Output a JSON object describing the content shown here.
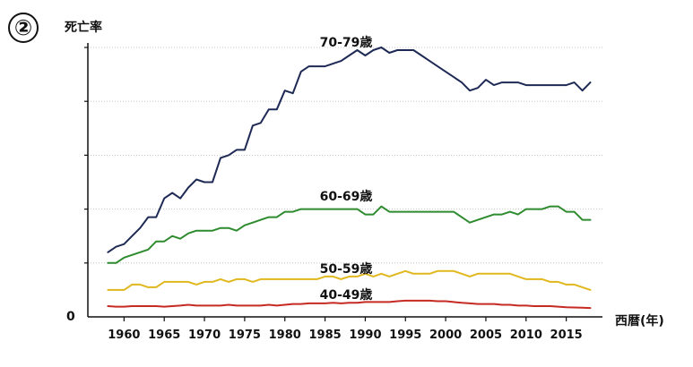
{
  "badge": "②",
  "chart_data": {
    "type": "line",
    "ylabel": "死亡率",
    "xlabel": "西暦(年)",
    "y_tick_labels": [
      "0"
    ],
    "x_ticks": [
      1960,
      1965,
      1970,
      1975,
      1980,
      1985,
      1990,
      1995,
      2000,
      2005,
      2010,
      2015
    ],
    "xlim": [
      1955.5,
      2019.5
    ],
    "ylim": [
      0,
      1.0
    ],
    "grid": "horizontal dotted",
    "series": [
      {
        "name": "70-79歳",
        "color": "#1e2a55",
        "x": [
          1958,
          1959,
          1960,
          1961,
          1962,
          1963,
          1964,
          1965,
          1966,
          1967,
          1968,
          1969,
          1970,
          1971,
          1972,
          1973,
          1974,
          1975,
          1976,
          1977,
          1978,
          1979,
          1980,
          1981,
          1982,
          1983,
          1984,
          1985,
          1986,
          1987,
          1988,
          1989,
          1990,
          1991,
          1992,
          1993,
          1994,
          1995,
          1996,
          1997,
          1998,
          1999,
          2000,
          2001,
          2002,
          2003,
          2004,
          2005,
          2006,
          2007,
          2008,
          2009,
          2010,
          2011,
          2012,
          2013,
          2014,
          2015,
          2016,
          2017,
          2018
        ],
        "values": [
          0.24,
          0.26,
          0.27,
          0.3,
          0.33,
          0.37,
          0.37,
          0.44,
          0.46,
          0.44,
          0.48,
          0.51,
          0.5,
          0.5,
          0.59,
          0.6,
          0.62,
          0.62,
          0.71,
          0.72,
          0.77,
          0.77,
          0.84,
          0.83,
          0.91,
          0.93,
          0.93,
          0.93,
          0.94,
          0.95,
          0.97,
          0.99,
          0.97,
          0.99,
          1.0,
          0.98,
          0.99,
          0.99,
          0.99,
          0.97,
          0.95,
          0.93,
          0.91,
          0.89,
          0.87,
          0.84,
          0.85,
          0.88,
          0.86,
          0.87,
          0.87,
          0.87,
          0.86,
          0.86,
          0.86,
          0.86,
          0.86,
          0.86,
          0.87,
          0.84,
          0.87
        ]
      },
      {
        "name": "60-69歳",
        "color": "#2e8b2e",
        "x": [
          1958,
          1959,
          1960,
          1961,
          1962,
          1963,
          1964,
          1965,
          1966,
          1967,
          1968,
          1969,
          1970,
          1971,
          1972,
          1973,
          1974,
          1975,
          1976,
          1977,
          1978,
          1979,
          1980,
          1981,
          1982,
          1983,
          1984,
          1985,
          1986,
          1987,
          1988,
          1989,
          1990,
          1991,
          1992,
          1993,
          1994,
          1995,
          1996,
          1997,
          1998,
          1999,
          2000,
          2001,
          2002,
          2003,
          2004,
          2005,
          2006,
          2007,
          2008,
          2009,
          2010,
          2011,
          2012,
          2013,
          2014,
          2015,
          2016,
          2017,
          2018
        ],
        "values": [
          0.2,
          0.2,
          0.22,
          0.23,
          0.24,
          0.25,
          0.28,
          0.28,
          0.3,
          0.29,
          0.31,
          0.32,
          0.32,
          0.32,
          0.33,
          0.33,
          0.32,
          0.34,
          0.35,
          0.36,
          0.37,
          0.37,
          0.39,
          0.39,
          0.4,
          0.4,
          0.4,
          0.4,
          0.4,
          0.4,
          0.4,
          0.4,
          0.38,
          0.38,
          0.41,
          0.39,
          0.39,
          0.39,
          0.39,
          0.39,
          0.39,
          0.39,
          0.39,
          0.39,
          0.37,
          0.35,
          0.36,
          0.37,
          0.38,
          0.38,
          0.39,
          0.38,
          0.4,
          0.4,
          0.4,
          0.41,
          0.41,
          0.39,
          0.39,
          0.36,
          0.36
        ]
      },
      {
        "name": "50-59歳",
        "color": "#e0b81e",
        "x": [
          1958,
          1959,
          1960,
          1961,
          1962,
          1963,
          1964,
          1965,
          1966,
          1967,
          1968,
          1969,
          1970,
          1971,
          1972,
          1973,
          1974,
          1975,
          1976,
          1977,
          1978,
          1979,
          1980,
          1981,
          1982,
          1983,
          1984,
          1985,
          1986,
          1987,
          1988,
          1989,
          1990,
          1991,
          1992,
          1993,
          1994,
          1995,
          1996,
          1997,
          1998,
          1999,
          2000,
          2001,
          2002,
          2003,
          2004,
          2005,
          2006,
          2007,
          2008,
          2009,
          2010,
          2011,
          2012,
          2013,
          2014,
          2015,
          2016,
          2017,
          2018
        ],
        "values": [
          0.1,
          0.1,
          0.1,
          0.12,
          0.12,
          0.11,
          0.11,
          0.13,
          0.13,
          0.13,
          0.13,
          0.12,
          0.13,
          0.13,
          0.14,
          0.13,
          0.14,
          0.14,
          0.13,
          0.14,
          0.14,
          0.14,
          0.14,
          0.14,
          0.14,
          0.14,
          0.14,
          0.15,
          0.15,
          0.14,
          0.15,
          0.15,
          0.16,
          0.15,
          0.16,
          0.15,
          0.16,
          0.17,
          0.16,
          0.16,
          0.16,
          0.17,
          0.17,
          0.17,
          0.16,
          0.15,
          0.16,
          0.16,
          0.16,
          0.16,
          0.16,
          0.15,
          0.14,
          0.14,
          0.14,
          0.13,
          0.13,
          0.12,
          0.12,
          0.11,
          0.1
        ]
      },
      {
        "name": "40-49歳",
        "color": "#c62a23",
        "x": [
          1958,
          1959,
          1960,
          1961,
          1962,
          1963,
          1964,
          1965,
          1966,
          1967,
          1968,
          1969,
          1970,
          1971,
          1972,
          1973,
          1974,
          1975,
          1976,
          1977,
          1978,
          1979,
          1980,
          1981,
          1982,
          1983,
          1984,
          1985,
          1986,
          1987,
          1988,
          1989,
          1990,
          1991,
          1992,
          1993,
          1994,
          1995,
          1996,
          1997,
          1998,
          1999,
          2000,
          2001,
          2002,
          2003,
          2004,
          2005,
          2006,
          2007,
          2008,
          2009,
          2010,
          2011,
          2012,
          2013,
          2014,
          2015,
          2016,
          2017,
          2018
        ],
        "values": [
          0.04,
          0.038,
          0.038,
          0.04,
          0.04,
          0.04,
          0.04,
          0.038,
          0.04,
          0.042,
          0.045,
          0.042,
          0.042,
          0.042,
          0.042,
          0.045,
          0.042,
          0.042,
          0.042,
          0.042,
          0.045,
          0.042,
          0.045,
          0.048,
          0.048,
          0.05,
          0.05,
          0.05,
          0.052,
          0.05,
          0.052,
          0.052,
          0.055,
          0.055,
          0.055,
          0.055,
          0.058,
          0.06,
          0.06,
          0.06,
          0.06,
          0.058,
          0.058,
          0.055,
          0.052,
          0.05,
          0.048,
          0.048,
          0.048,
          0.045,
          0.045,
          0.042,
          0.042,
          0.04,
          0.04,
          0.04,
          0.038,
          0.036,
          0.035,
          0.034,
          0.033
        ]
      }
    ]
  }
}
